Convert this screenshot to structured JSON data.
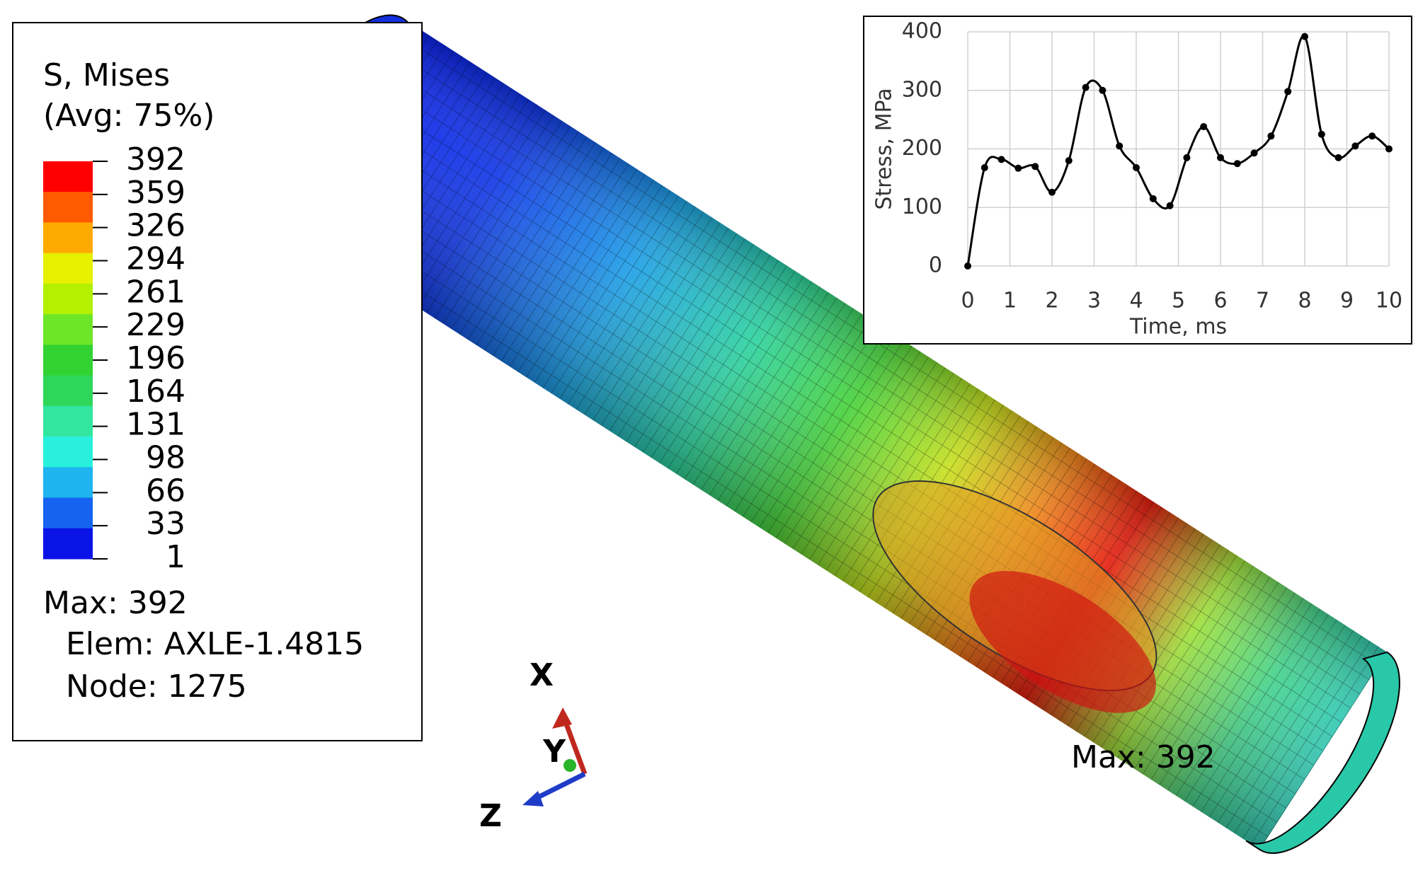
{
  "legend": {
    "title": [
      "S, Mises",
      "(Avg: 75%)"
    ],
    "levels": [
      392,
      359,
      326,
      294,
      261,
      229,
      196,
      164,
      131,
      98,
      66,
      33,
      1
    ],
    "colors": [
      "#ff0000",
      "#ff5a00",
      "#ffaa00",
      "#e6f000",
      "#b4f000",
      "#6ee628",
      "#32d232",
      "#2ed75a",
      "#32e6a0",
      "#28f0dc",
      "#1eb4f0",
      "#1464f0",
      "#0a14e6"
    ],
    "max": "Max: 392",
    "elem": "Elem: AXLE-1.4815",
    "node": "Node: 1275"
  },
  "model": {
    "max_label": "Max: 392",
    "axes": [
      "X",
      "Y",
      "Z"
    ]
  },
  "chart_data": {
    "type": "line",
    "x_label": "Time, ms",
    "y_label": "Stress, MPa",
    "x": [
      0,
      0.4,
      0.8,
      1.2,
      1.6,
      2.0,
      2.4,
      2.8,
      3.2,
      3.6,
      4.0,
      4.4,
      4.8,
      5.2,
      5.6,
      6.0,
      6.4,
      6.8,
      7.2,
      7.6,
      8.0,
      8.4,
      8.8,
      9.2,
      9.6,
      10.0
    ],
    "series": [
      {
        "name": "Stress",
        "color": "#000000",
        "values": [
          0,
          168,
          182,
          167,
          170,
          126,
          180,
          305,
          300,
          205,
          168,
          115,
          103,
          185,
          238,
          185,
          175,
          193,
          222,
          298,
          392,
          225,
          185,
          205,
          222,
          200
        ]
      }
    ],
    "xlim": [
      0,
      10
    ],
    "ylim": [
      0,
      400
    ],
    "xticks": [
      0,
      1,
      2,
      3,
      4,
      5,
      6,
      7,
      8,
      9,
      10
    ],
    "yticks": [
      0,
      100,
      200,
      300,
      400
    ],
    "grid": true
  }
}
